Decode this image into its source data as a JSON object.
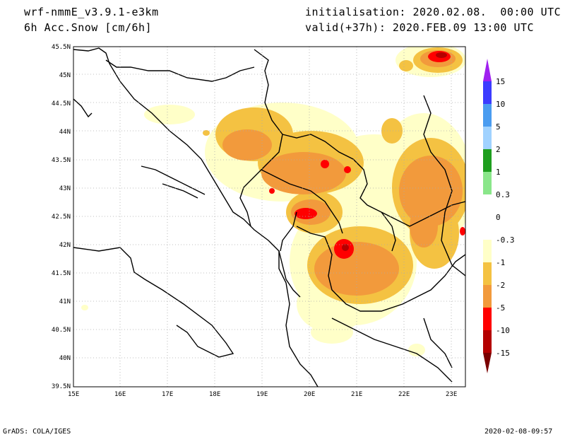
{
  "header": {
    "model": "wrf-nmmE_v3.9.1-e3km",
    "field": "6h Acc.Snow [cm/6h]",
    "init": "initialisation: 2020.02.08.  00:00 UTC",
    "valid": "valid(+37h): 2020.FEB.09 13:00 UTC"
  },
  "map": {
    "lon_labels": [
      "15E",
      "16E",
      "17E",
      "18E",
      "19E",
      "20E",
      "21E",
      "22E",
      "23E"
    ],
    "lat_labels": [
      "45.5N",
      "45N",
      "44.5N",
      "44N",
      "43.5N",
      "43N",
      "42.5N",
      "42N",
      "41.5N",
      "41N",
      "40.5N",
      "40N",
      "39.5N"
    ]
  },
  "colorbar": {
    "labels": [
      "15",
      "10",
      "5",
      "2",
      "1",
      "0.3",
      "0",
      "-0.3",
      "-1",
      "-2",
      "-5",
      "-10",
      "-15"
    ],
    "colors": [
      "#a020f0",
      "#3c3cff",
      "#4a9cf0",
      "#a0d2ff",
      "#1e9e1e",
      "#8ae68a",
      "#ffffff",
      "#ffffc8",
      "#f4c242",
      "#f29a3c",
      "#ff0000",
      "#b40000",
      "#7a0000"
    ]
  },
  "footer": {
    "left": "GrADS: COLA/IGES",
    "right": "2020-02-08-09:57"
  }
}
